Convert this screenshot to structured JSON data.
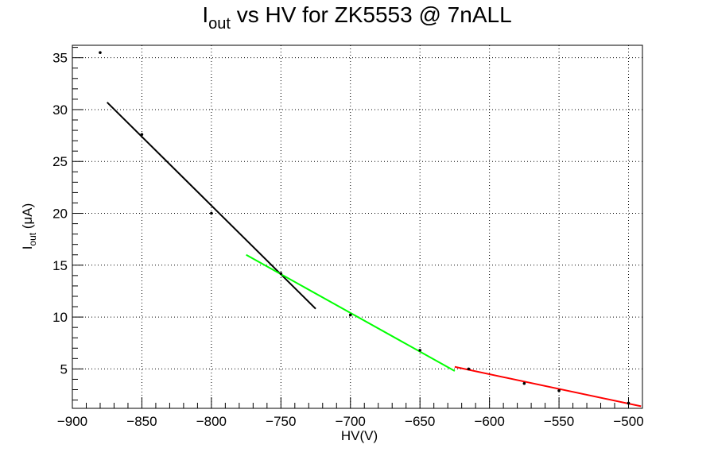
{
  "chart_data": {
    "type": "scatter",
    "title": {
      "main": "I",
      "sub": "out",
      "rest": " vs HV for ZK5553 @ 7nALL"
    },
    "xlabel": "HV(V)",
    "ylabel": {
      "main": "I",
      "sub": "out",
      "rest": " (μA)"
    },
    "xlim": [
      -900,
      -490
    ],
    "ylim": [
      1.2,
      36.2
    ],
    "xticks": [
      -900,
      -850,
      -800,
      -750,
      -700,
      -650,
      -600,
      -550,
      -500
    ],
    "xtick_labels": [
      "−900",
      "−850",
      "−800",
      "−750",
      "−700",
      "−650",
      "−600",
      "−550",
      "−500"
    ],
    "yticks": [
      5,
      10,
      15,
      20,
      25,
      30,
      35
    ],
    "ytick_labels": [
      "5",
      "10",
      "15",
      "20",
      "25",
      "30",
      "35"
    ],
    "grid": true,
    "points": {
      "x": [
        -880,
        -850,
        -800,
        -750,
        -700,
        -650,
        -615,
        -575,
        -550,
        -500
      ],
      "y": [
        35.5,
        27.6,
        20.0,
        14.2,
        10.2,
        6.8,
        5.0,
        3.6,
        2.9,
        1.7
      ],
      "color": "#000000"
    },
    "fits": [
      {
        "x": [
          -875,
          -725
        ],
        "y": [
          30.7,
          10.8
        ],
        "color": "#000000"
      },
      {
        "x": [
          -775,
          -625
        ],
        "y": [
          16.0,
          4.8
        ],
        "color": "#00ff00"
      },
      {
        "x": [
          -625,
          -491
        ],
        "y": [
          5.2,
          1.4
        ],
        "color": "#ff0000"
      }
    ]
  }
}
